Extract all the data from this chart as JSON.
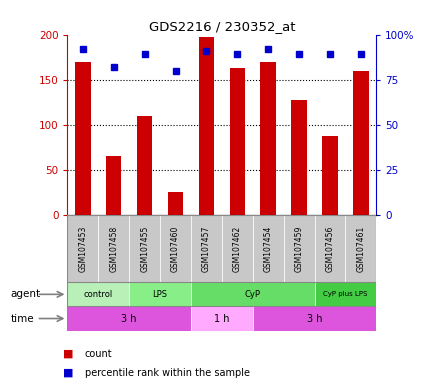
{
  "title": "GDS2216 / 230352_at",
  "samples": [
    "GSM107453",
    "GSM107458",
    "GSM107455",
    "GSM107460",
    "GSM107457",
    "GSM107462",
    "GSM107454",
    "GSM107459",
    "GSM107456",
    "GSM107461"
  ],
  "counts": [
    170,
    65,
    110,
    25,
    197,
    163,
    170,
    128,
    88,
    160
  ],
  "percentiles": [
    92,
    82,
    89,
    80,
    91,
    89,
    92,
    89,
    89,
    89
  ],
  "left_ylim": [
    0,
    200
  ],
  "right_ylim": [
    0,
    100
  ],
  "left_yticks": [
    0,
    50,
    100,
    150,
    200
  ],
  "right_yticks": [
    0,
    25,
    50,
    75,
    100
  ],
  "right_yticklabels": [
    "0",
    "25",
    "50",
    "75",
    "100%"
  ],
  "agent_groups": [
    {
      "label": "control",
      "start": 0,
      "end": 2,
      "color": "#b8f0b8"
    },
    {
      "label": "LPS",
      "start": 2,
      "end": 4,
      "color": "#88ee88"
    },
    {
      "label": "CyP",
      "start": 4,
      "end": 8,
      "color": "#66dd66"
    },
    {
      "label": "CyP plus LPS",
      "start": 8,
      "end": 10,
      "color": "#44cc44"
    }
  ],
  "time_groups": [
    {
      "label": "3 h",
      "start": 0,
      "end": 4,
      "color": "#dd55dd"
    },
    {
      "label": "1 h",
      "start": 4,
      "end": 6,
      "color": "#ffaaff"
    },
    {
      "label": "3 h",
      "start": 6,
      "end": 10,
      "color": "#dd55dd"
    }
  ],
  "bar_color": "#cc0000",
  "dot_color": "#0000cc",
  "grid_color": "#000000",
  "sample_bg_color": "#c8c8c8",
  "left_tick_color": "#cc0000",
  "right_tick_color": "#0000cc",
  "legend_count_color": "#cc0000",
  "legend_pct_color": "#0000cc",
  "fig_width": 4.35,
  "fig_height": 3.84,
  "dpi": 100
}
